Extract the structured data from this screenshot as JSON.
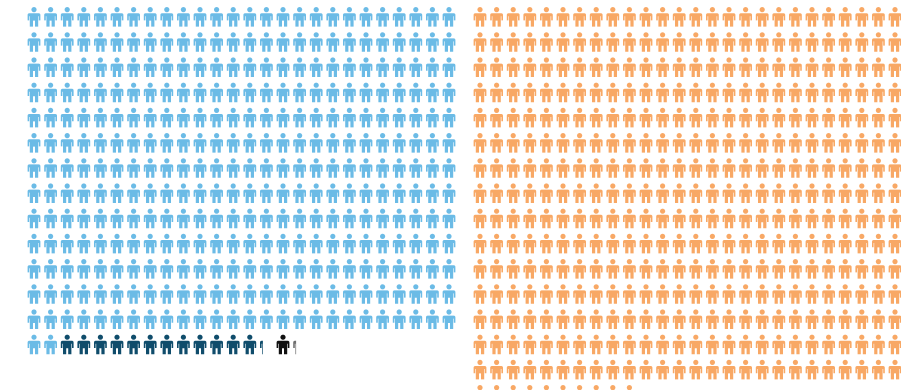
{
  "chart_data": {
    "type": "pictogram",
    "title": "",
    "units_per_icon": 1,
    "grid": false,
    "legend": "none",
    "series": [
      {
        "values": [
          340
        ],
        "color": "#6bbbe6"
      },
      {
        "values": [
          12.25
        ],
        "color": "#0f4c6b"
      },
      {
        "values": [
          1
        ],
        "color": "#111111"
      },
      {
        "values": [
          0.25
        ],
        "color": "#6f6f6f"
      },
      {
        "values": [
          400
        ],
        "color": "#f8a865"
      }
    ]
  }
}
